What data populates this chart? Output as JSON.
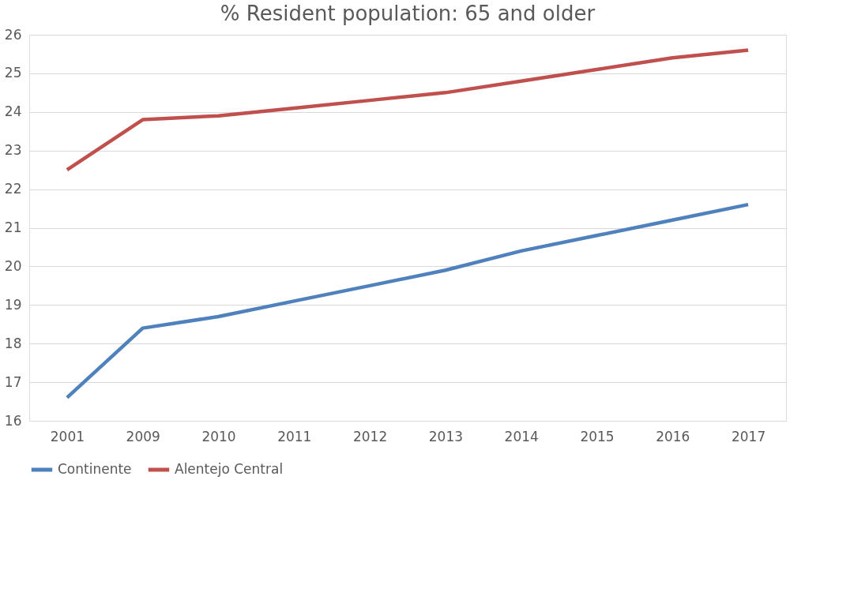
{
  "chart_data": {
    "type": "line",
    "title": "% Resident population: 65 and older",
    "categories": [
      "2001",
      "2009",
      "2010",
      "2011",
      "2012",
      "2013",
      "2014",
      "2015",
      "2016",
      "2017"
    ],
    "series": [
      {
        "name": "Continente",
        "color": "#4f81bd",
        "values": [
          16.6,
          18.4,
          18.7,
          19.1,
          19.5,
          19.9,
          20.4,
          20.8,
          21.2,
          21.6
        ]
      },
      {
        "name": "Alentejo Central",
        "color": "#c0504d",
        "values": [
          22.5,
          23.8,
          23.9,
          24.1,
          24.3,
          24.5,
          24.8,
          25.1,
          25.4,
          25.6
        ]
      }
    ],
    "ylim": [
      16,
      26
    ],
    "yticks": [
      16,
      17,
      18,
      19,
      20,
      21,
      22,
      23,
      24,
      25,
      26
    ],
    "grid": "y",
    "legend": "bottom",
    "marker": "none",
    "line_style": "solid"
  }
}
